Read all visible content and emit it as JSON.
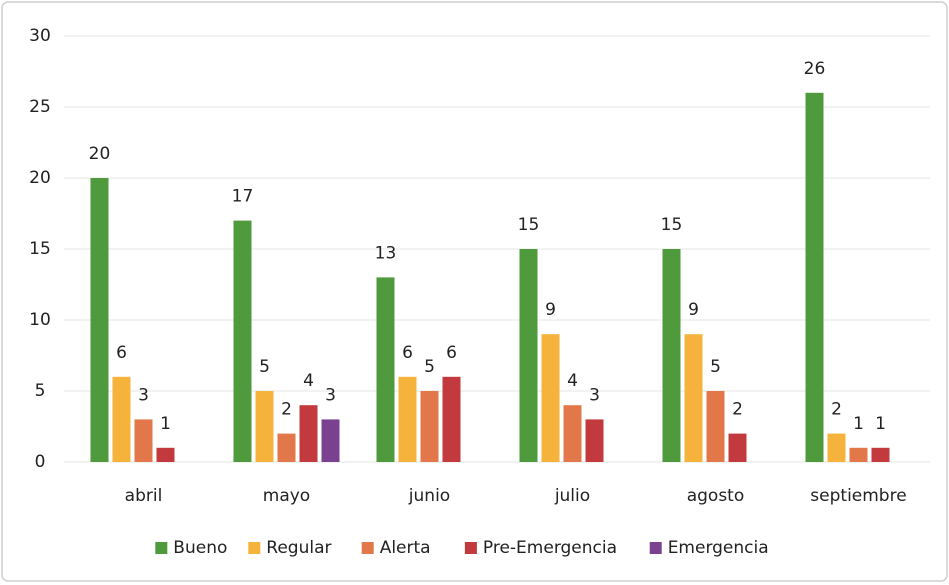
{
  "chart_data": {
    "type": "bar",
    "categories": [
      "abril",
      "mayo",
      "junio",
      "julio",
      "agosto",
      "septiembre"
    ],
    "series": [
      {
        "name": "Bueno",
        "color": "#4e9a3c",
        "values": [
          20,
          17,
          13,
          15,
          15,
          26
        ]
      },
      {
        "name": "Regular",
        "color": "#f5b33c",
        "values": [
          6,
          5,
          6,
          9,
          9,
          2
        ]
      },
      {
        "name": "Alerta",
        "color": "#e2784a",
        "values": [
          3,
          2,
          5,
          4,
          5,
          1
        ]
      },
      {
        "name": "Pre-Emergencia",
        "color": "#c23a3e",
        "values": [
          1,
          4,
          6,
          3,
          2,
          1
        ]
      },
      {
        "name": "Emergencia",
        "color": "#7a4190",
        "values": [
          null,
          3,
          null,
          null,
          null,
          null
        ]
      }
    ],
    "ylim": [
      0,
      30
    ],
    "yticks": [
      0,
      5,
      10,
      15,
      20,
      25,
      30
    ],
    "grid": true,
    "legend": "bottom"
  }
}
